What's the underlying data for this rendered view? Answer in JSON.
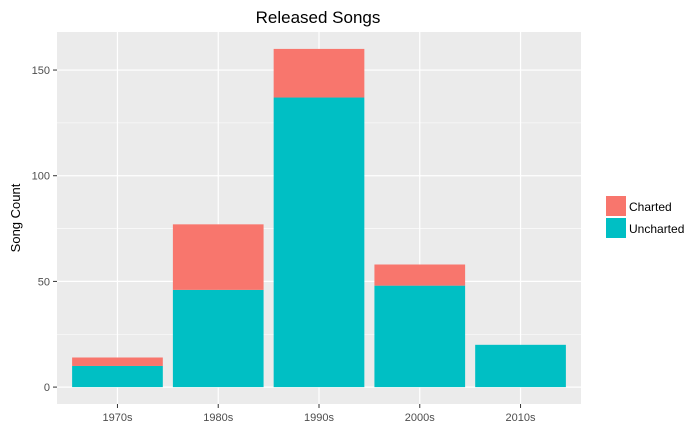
{
  "chart_data": {
    "type": "bar",
    "stacked": true,
    "title": "Released Songs",
    "xlabel": "",
    "ylabel": "Song Count",
    "categories": [
      "1970s",
      "1980s",
      "1990s",
      "2000s",
      "2010s"
    ],
    "series": [
      {
        "name": "Uncharted",
        "color": "#00BFC4",
        "values": [
          10,
          46,
          137,
          48,
          20
        ]
      },
      {
        "name": "Charted",
        "color": "#F8766D",
        "values": [
          4,
          31,
          23,
          10,
          0
        ]
      }
    ],
    "ylim": [
      -8,
      168
    ],
    "yticks": [
      0,
      50,
      100,
      150
    ],
    "yticks_labels": [
      "0",
      "50",
      "100",
      "150"
    ],
    "legend": {
      "position": "right",
      "order": [
        "Charted",
        "Uncharted"
      ]
    },
    "grid": true,
    "panel_background": "#EBEBEB",
    "grid_color": "#FFFFFF"
  }
}
